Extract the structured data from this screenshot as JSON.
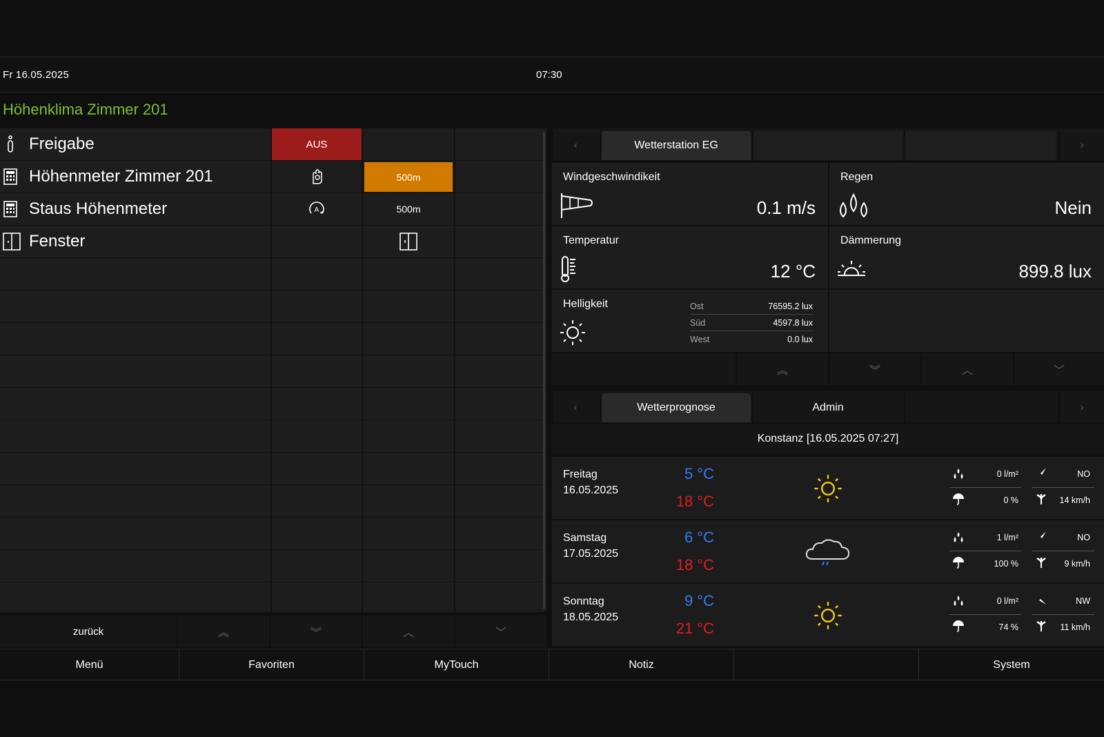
{
  "topbar": {
    "date": "Fr  16.05.2025",
    "time": "07:30"
  },
  "page_title": "Höhenklima Zimmer 201",
  "table": {
    "rows": [
      {
        "label": "Freigabe",
        "icon": "info-icon",
        "c1": "AUS"
      },
      {
        "label": "Höhenmeter Zimmer 201",
        "icon": "calculator-icon",
        "c2": "500m"
      },
      {
        "label": "Staus Höhenmeter",
        "icon": "calculator-icon",
        "c2": "500m"
      },
      {
        "label": "Fenster",
        "icon": "window-icon"
      }
    ]
  },
  "left_nav": {
    "back": "zurück"
  },
  "bottom_nav": {
    "menu": "Menü",
    "favorites": "Favoriten",
    "mytouch": "MyTouch",
    "note": "Notiz",
    "empty": "",
    "system": "System"
  },
  "weather_station": {
    "tab": "Wetterstation EG",
    "wind": {
      "label": "Windgeschwindikeit",
      "value": "0.1 m/s",
      "icon": "windsock-icon"
    },
    "rain": {
      "label": "Regen",
      "value": "Nein",
      "icon": "raindrops-icon"
    },
    "temperature": {
      "label": "Temperatur",
      "value": "12 °C",
      "icon": "thermometer-icon"
    },
    "dusk": {
      "label": "Dämmerung",
      "value": "899.8 lux",
      "icon": "sunrise-icon"
    },
    "brightness": {
      "label": "Helligkeit",
      "icon": "sun-icon",
      "items": [
        {
          "key": "Ost",
          "value": "76595.2 lux"
        },
        {
          "key": "Süd",
          "value": "4597.8 lux"
        },
        {
          "key": "West",
          "value": "0.0 lux"
        }
      ]
    }
  },
  "forecast": {
    "tabs": [
      "Wetterprognose",
      "Admin"
    ],
    "location": "Konstanz  [16.05.2025 07:27]",
    "days": [
      {
        "day": "Freitag",
        "date": "16.05.2025",
        "tmin": "5 °C",
        "tmax": "18 °C",
        "weather": "sun-icon",
        "rain": "0 l/m²",
        "prob": "0 %",
        "wind_dir": "NO",
        "wind_speed": "14 km/h"
      },
      {
        "day": "Samstag",
        "date": "17.05.2025",
        "tmin": "6 °C",
        "tmax": "18 °C",
        "weather": "cloud-rain-icon",
        "rain": "1 l/m²",
        "prob": "100 %",
        "wind_dir": "NO",
        "wind_speed": "9 km/h"
      },
      {
        "day": "Sonntag",
        "date": "18.05.2025",
        "tmin": "9 °C",
        "tmax": "21 °C",
        "weather": "sun-icon",
        "rain": "0 l/m²",
        "prob": "74 %",
        "wind_dir": "NW",
        "wind_speed": "11 km/h"
      }
    ]
  },
  "colors": {
    "accent_green": "#7cbf2f",
    "off_red": "#9c1b1b",
    "active_orange": "#d17a00",
    "temp_min": "#2f7df2",
    "temp_max": "#e31b1b",
    "sun": "#f2c811"
  }
}
